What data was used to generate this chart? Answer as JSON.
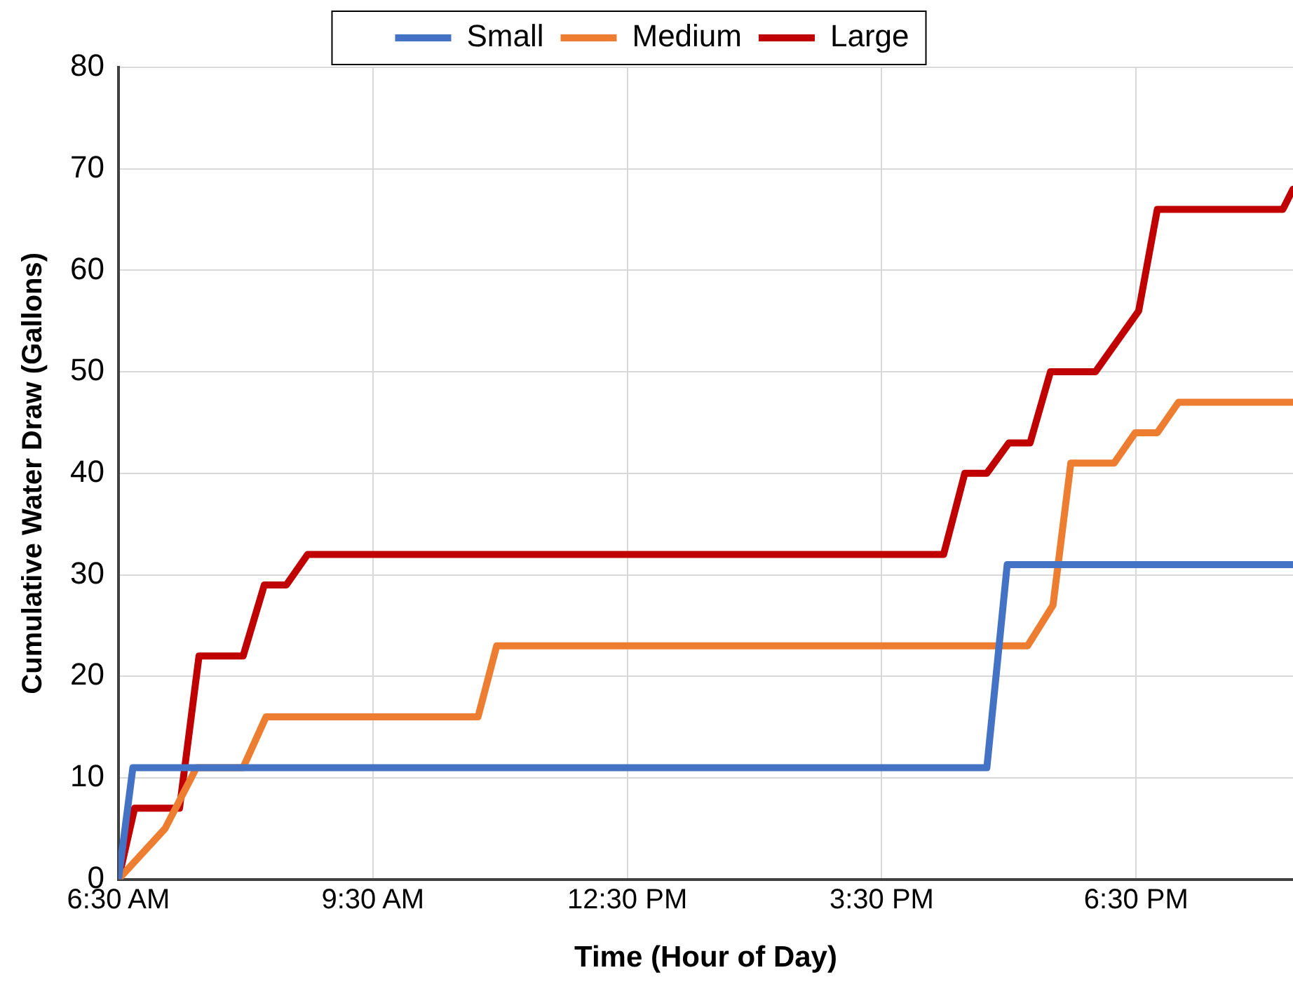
{
  "chart_data": {
    "type": "line",
    "xlabel": "Time (Hour of Day)",
    "ylabel": "Cumulative Water Draw (Gallons)",
    "xlim": [
      6.5,
      20.35
    ],
    "xticks": [
      {
        "value": 6.5,
        "label": "6:30 AM"
      },
      {
        "value": 9.5,
        "label": "9:30 AM"
      },
      {
        "value": 12.5,
        "label": "12:30 PM"
      },
      {
        "value": 15.5,
        "label": "3:30 PM"
      },
      {
        "value": 18.5,
        "label": "6:30 PM"
      }
    ],
    "ylim": [
      0,
      80
    ],
    "yticks": [
      0,
      10,
      20,
      30,
      40,
      50,
      60,
      70,
      80
    ],
    "grid": true,
    "legend": "top",
    "marker": "none",
    "line_style": "solid",
    "series": [
      {
        "name": "Small",
        "color": "#4472c4",
        "x": [
          6.5,
          6.67,
          16.74,
          16.98,
          20.35
        ],
        "values": [
          0,
          11,
          11,
          31,
          31
        ]
      },
      {
        "name": "Medium",
        "color": "#ed7d31",
        "x": [
          6.5,
          7.05,
          7.42,
          7.97,
          8.24,
          10.74,
          10.96,
          17.22,
          17.52,
          17.73,
          18.24,
          18.49,
          18.75,
          19.0,
          20.35
        ],
        "values": [
          0,
          5,
          11,
          11,
          16,
          16,
          23,
          23,
          27,
          41,
          41,
          44,
          44,
          47,
          47
        ]
      },
      {
        "name": "Large",
        "color": "#c00000",
        "x": [
          6.5,
          6.69,
          7.22,
          7.45,
          7.97,
          8.22,
          8.48,
          8.73,
          16.23,
          16.48,
          16.74,
          17.0,
          17.25,
          17.49,
          18.02,
          18.53,
          18.75,
          20.23,
          20.35
        ],
        "values": [
          0,
          7,
          7,
          22,
          22,
          29,
          29,
          32,
          32,
          40,
          40,
          43,
          43,
          50,
          50,
          56,
          66,
          66,
          68
        ]
      }
    ]
  }
}
